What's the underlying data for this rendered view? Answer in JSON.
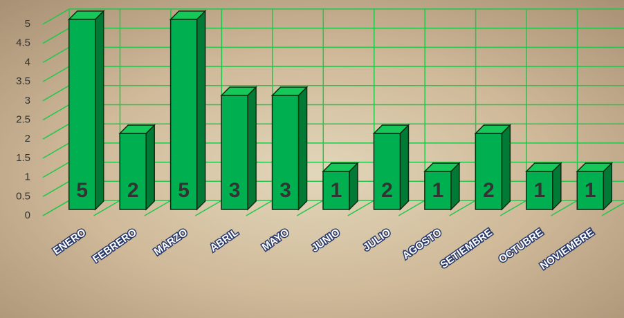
{
  "chart_data": {
    "type": "bar3d",
    "categories": [
      "ENERO",
      "FEBRERO",
      "MARZO",
      "ABRIL",
      "MAYO",
      "JUNIO",
      "JULIO",
      "AGOSTO",
      "SETIEMBRE",
      "OCTUBRE",
      "NOVIEMBRE"
    ],
    "values": [
      5,
      2,
      5,
      3,
      3,
      1,
      2,
      1,
      2,
      1,
      1
    ],
    "color": "#00b050",
    "ylim": [
      0,
      5
    ],
    "yticks": [
      0,
      0.5,
      1,
      1.5,
      2,
      2.5,
      3,
      3.5,
      4,
      4.5,
      5
    ],
    "grid": true
  }
}
